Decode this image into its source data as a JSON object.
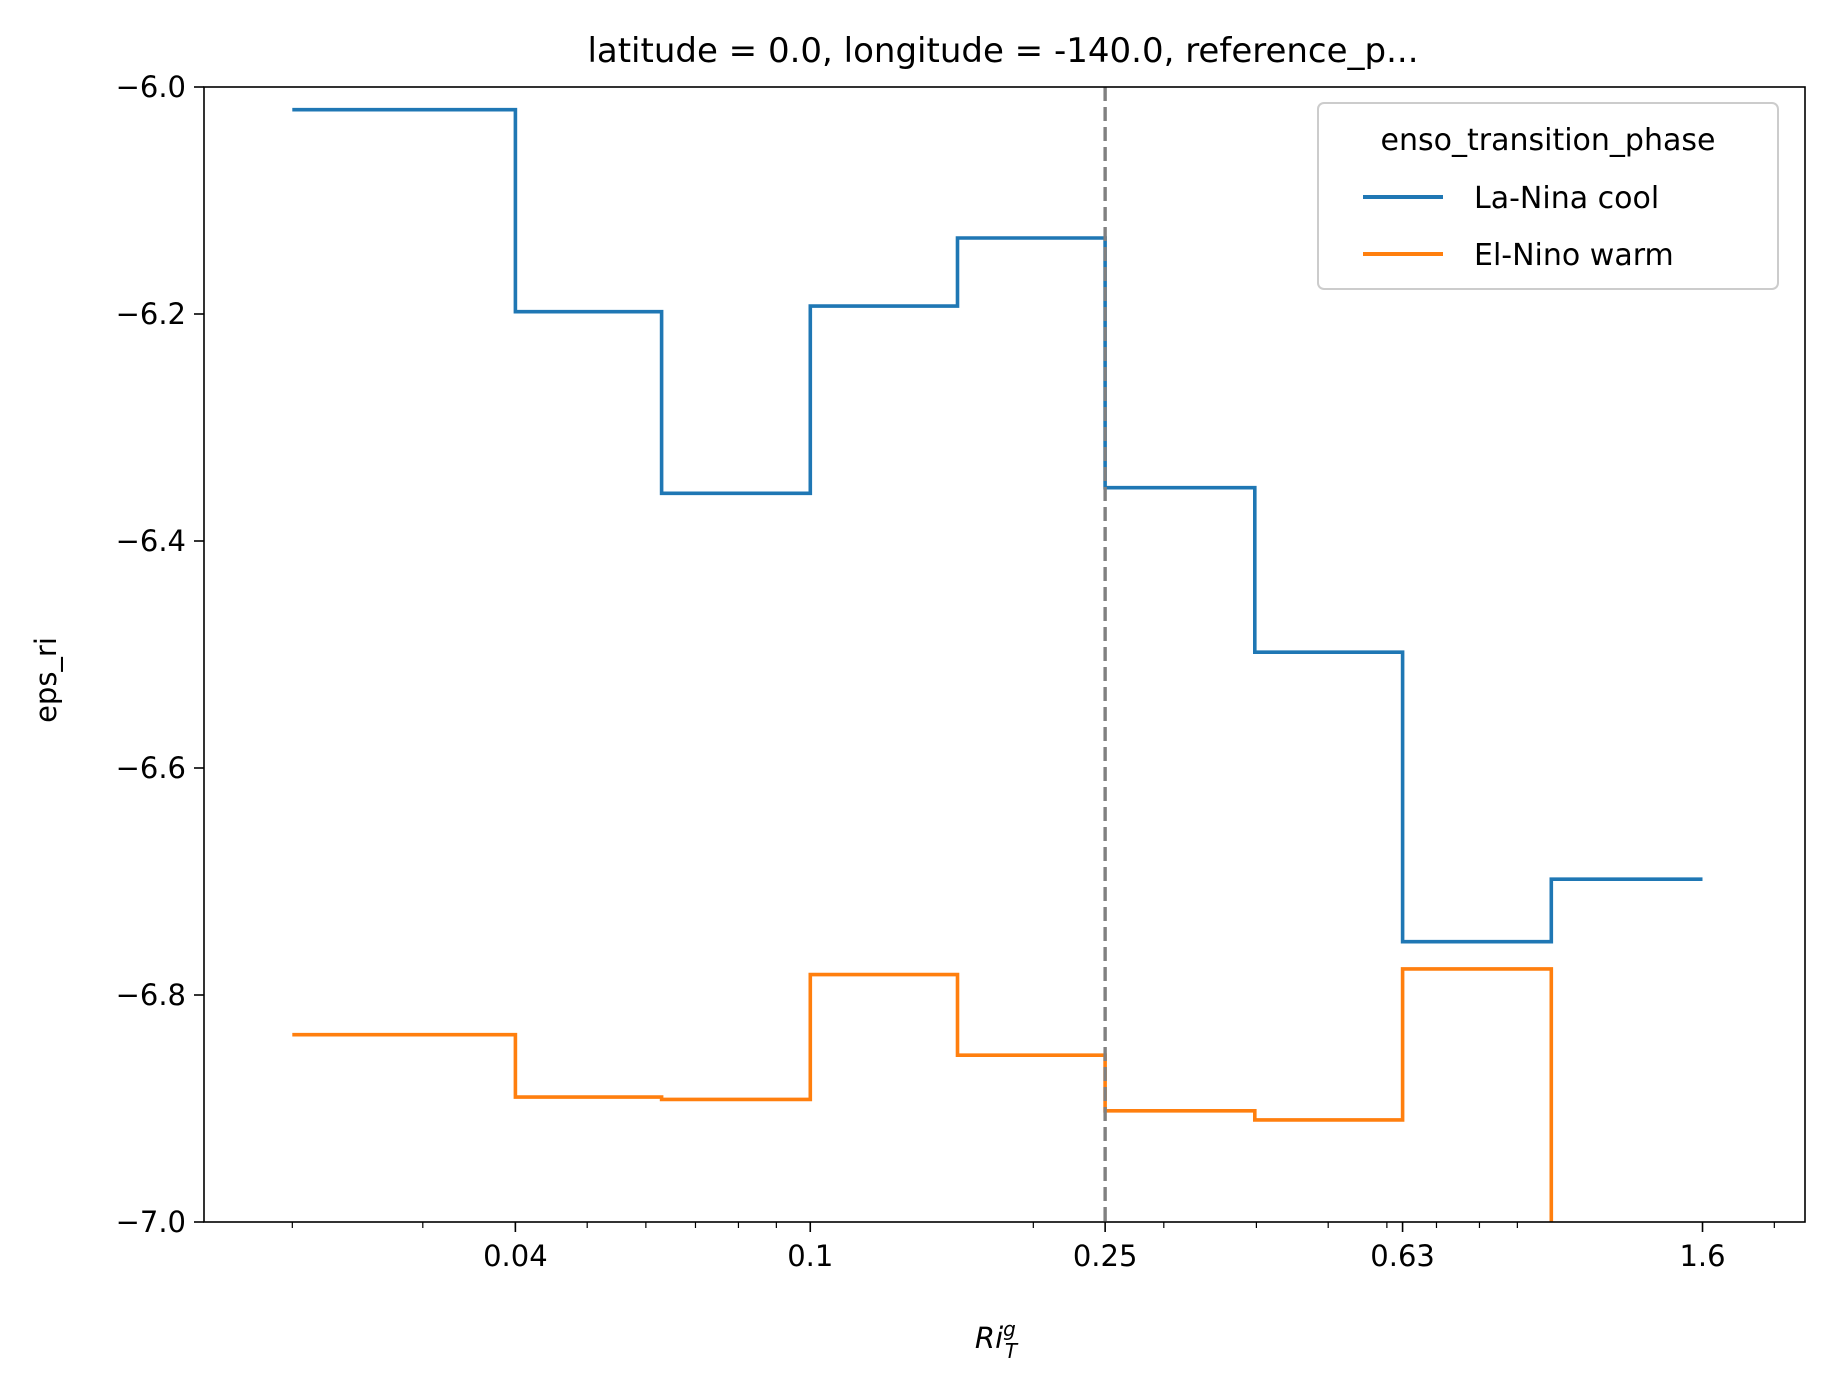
{
  "chart_data": {
    "type": "line",
    "title": "latitude = 0.0, longitude = -140.0, reference_p...",
    "xlabel": "Ri",
    "xlabel_sup": "g",
    "xlabel_sub": "T",
    "ylabel": "eps_ri",
    "xscale": "log",
    "xlim": [
      0.0152,
      2.2
    ],
    "ylim": [
      -7.0,
      -6.0
    ],
    "xticks": [
      0.04,
      0.1,
      0.25,
      0.63,
      1.6
    ],
    "xtick_labels": [
      "0.04",
      "0.1",
      "0.25",
      "0.63",
      "1.6"
    ],
    "yticks": [
      -6.0,
      -6.2,
      -6.4,
      -6.6,
      -6.8,
      -7.0
    ],
    "ytick_labels": [
      "−6.0",
      "−6.2",
      "−6.4",
      "−6.6",
      "−6.8",
      "−7.0"
    ],
    "vline": {
      "x": 0.25,
      "style": "dashed",
      "color": "#808080"
    },
    "grid": false,
    "legend": {
      "title": "enso_transition_phase",
      "placement": "top-right"
    },
    "bin_edges": [
      0.02,
      0.04,
      0.063,
      0.1,
      0.158,
      0.25,
      0.398,
      0.63,
      1.0,
      1.6
    ],
    "series": [
      {
        "name": "La-Nina cool",
        "color": "#1f77b4",
        "values": [
          -6.02,
          -6.198,
          -6.358,
          -6.193,
          -6.133,
          -6.353,
          -6.498,
          -6.753,
          -6.698
        ]
      },
      {
        "name": "El-Nino warm",
        "color": "#ff7f0e",
        "values": [
          -6.835,
          -6.89,
          -6.892,
          -6.782,
          -6.853,
          -6.902,
          -6.91,
          -6.777,
          -7.1
        ]
      }
    ]
  }
}
